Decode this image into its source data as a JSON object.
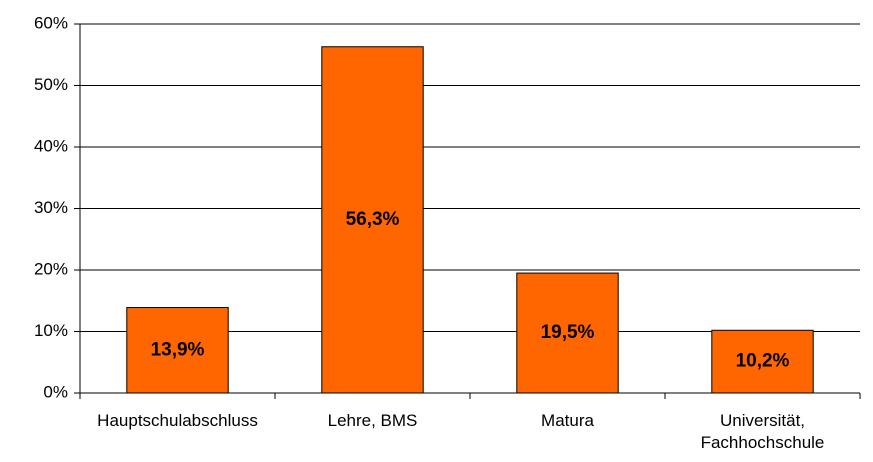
{
  "chart_data": {
    "type": "bar",
    "categories": [
      "Hauptschulabschluss",
      "Lehre, BMS",
      "Matura",
      "Universität, Fachhochschule"
    ],
    "values": [
      13.9,
      56.3,
      19.5,
      10.2
    ],
    "value_labels": [
      "13,9%",
      "56,3%",
      "19,5%",
      "10,2%"
    ],
    "color": "#ff6600",
    "ylim": [
      0,
      60
    ],
    "yticks": [
      {
        "value": 0,
        "label": "0%"
      },
      {
        "value": 10,
        "label": "10%"
      },
      {
        "value": 20,
        "label": "20%"
      },
      {
        "value": 30,
        "label": "30%"
      },
      {
        "value": 40,
        "label": "40%"
      },
      {
        "value": 50,
        "label": "50%"
      },
      {
        "value": 60,
        "label": "60%"
      }
    ],
    "grid": true
  }
}
